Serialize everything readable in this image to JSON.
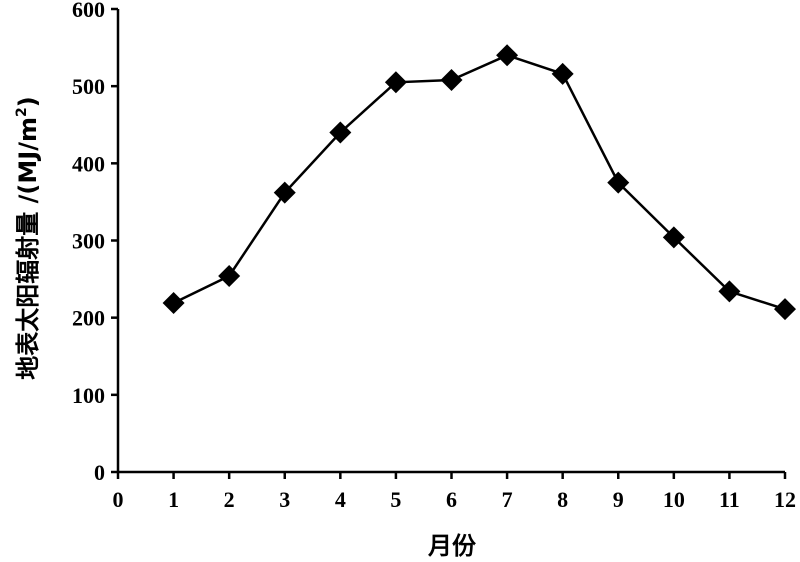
{
  "chart_data": {
    "type": "line",
    "title": "",
    "xlabel": "月份",
    "ylabel": "地表太阳辐射量 /(MJ/m²)",
    "ylabel_parts": {
      "main": "地表太阳辐射量 /(MJ/m",
      "sup": "2",
      "close": ")"
    },
    "xlim": [
      0,
      12
    ],
    "ylim": [
      0,
      600
    ],
    "x_ticks": [
      "0",
      "1",
      "2",
      "3",
      "4",
      "5",
      "6",
      "7",
      "8",
      "9",
      "10",
      "11",
      "12"
    ],
    "y_ticks": [
      "0",
      "100",
      "200",
      "300",
      "400",
      "500",
      "600"
    ],
    "grid": false,
    "marker": "diamond",
    "series": [
      {
        "x": [
          1,
          2,
          3,
          4,
          5,
          6,
          7,
          8,
          9,
          10,
          11,
          12
        ],
        "values": [
          219,
          254,
          362,
          440,
          505,
          508,
          540,
          516,
          375,
          304,
          234,
          211
        ]
      }
    ]
  }
}
